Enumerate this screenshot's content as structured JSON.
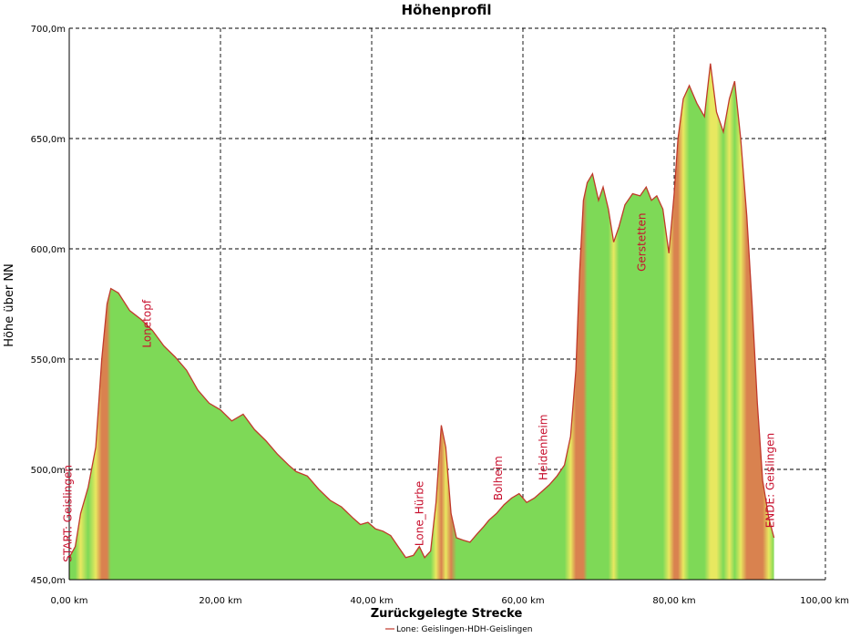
{
  "chart_data": {
    "type": "area",
    "title": "Höhenprofil",
    "xlabel": "Zurückgelegte Strecke",
    "ylabel": "Höhe über NN",
    "xlim": [
      0,
      100
    ],
    "ylim": [
      450,
      700
    ],
    "x_ticks": [
      "0,00 km",
      "20,00 km",
      "40,00 km",
      "60,00 km",
      "80,00 km",
      "100,00 km"
    ],
    "y_ticks": [
      "450,0m",
      "500,0m",
      "550,0m",
      "600,0m",
      "650,0m",
      "700,0m"
    ],
    "grid": true,
    "legend": {
      "position": "bottom-center",
      "label": "Lone: Geislingen-HDH-Geislingen"
    },
    "line_color": "#c0392b",
    "fill_colors": {
      "flat": "#7ed957",
      "medium": "#e8e860",
      "steep": "#d9824f"
    },
    "series": [
      {
        "name": "Lone: Geislingen-HDH-Geislingen",
        "x": [
          0,
          0.8,
          1.5,
          2.5,
          3.5,
          4.3,
          5,
          5.5,
          6.5,
          8,
          9.5,
          11,
          12.5,
          14,
          15.5,
          17,
          18.5,
          20,
          21.5,
          23,
          24.5,
          26,
          27.5,
          29,
          30,
          31.5,
          33,
          34.5,
          36,
          37.5,
          38.5,
          39.5,
          40.5,
          41.5,
          42.5,
          43.5,
          44.5,
          45.5,
          46.3,
          47,
          47.8,
          48.5,
          49.2,
          49.8,
          50.5,
          51.2,
          52,
          53,
          54,
          54.8,
          55.5,
          56.5,
          57.5,
          58.5,
          59.5,
          60.5,
          61.5,
          62.5,
          63.5,
          64.5,
          65.5,
          66.3,
          67,
          67.5,
          68,
          68.5,
          69.2,
          70,
          70.6,
          71.3,
          72,
          72.7,
          73.5,
          74.5,
          75.5,
          76.3,
          77,
          77.7,
          78.5,
          79.3,
          80,
          80.5,
          81.2,
          82,
          83,
          84,
          84.8,
          85.6,
          86.5,
          87.3,
          88,
          88.8,
          89.6,
          90.3,
          91,
          91.7,
          92.5,
          93.2
        ],
        "values": [
          460,
          465,
          480,
          492,
          510,
          550,
          575,
          582,
          580,
          572,
          568,
          563,
          556,
          551,
          545,
          536,
          530,
          527,
          522,
          525,
          518,
          513,
          507,
          502,
          499,
          497,
          491,
          486,
          483,
          478,
          475,
          476,
          473,
          472,
          470,
          465,
          460,
          461,
          465,
          460,
          463,
          485,
          520,
          510,
          480,
          469,
          468,
          467,
          471,
          474,
          477,
          480,
          484,
          487,
          489,
          485,
          487,
          490,
          493,
          497,
          502,
          515,
          545,
          590,
          622,
          630,
          634,
          622,
          628,
          618,
          603,
          610,
          620,
          625,
          624,
          628,
          622,
          624,
          618,
          598,
          625,
          650,
          668,
          674,
          666,
          660,
          684,
          662,
          653,
          668,
          676,
          650,
          615,
          575,
          530,
          495,
          478,
          469
        ]
      }
    ],
    "annotations": [
      {
        "text": "START: Geislingen",
        "x": 0.3,
        "y": 480
      },
      {
        "text": "Lonetopf",
        "x": 10.8,
        "y": 566
      },
      {
        "text": "Lone_Hürbe",
        "x": 46.8,
        "y": 480
      },
      {
        "text": "Bolheim",
        "x": 57.2,
        "y": 496
      },
      {
        "text": "Heidenheim",
        "x": 63.2,
        "y": 510
      },
      {
        "text": "Gerstetten",
        "x": 76.2,
        "y": 603
      },
      {
        "text": "ENDE: Geislingen",
        "x": 93.2,
        "y": 495
      }
    ]
  }
}
